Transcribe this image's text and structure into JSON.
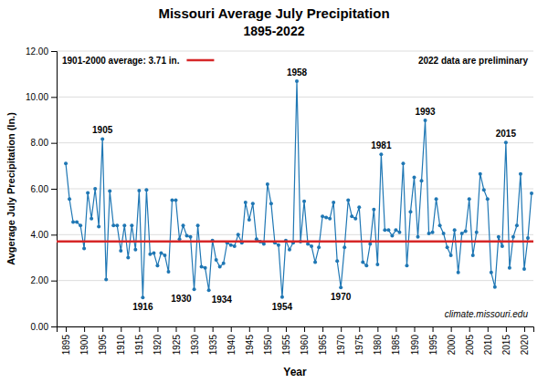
{
  "chart_data": {
    "type": "line",
    "title": "Missouri Average July Precipitation",
    "subtitle": "1895-2022",
    "x_label": "Year",
    "y_label": "Avgerage July Precipitation  (In.)",
    "marker": "circle",
    "grid": true,
    "x": [
      1895,
      1896,
      1897,
      1898,
      1899,
      1900,
      1901,
      1902,
      1903,
      1904,
      1905,
      1906,
      1907,
      1908,
      1909,
      1910,
      1911,
      1912,
      1913,
      1914,
      1915,
      1916,
      1917,
      1918,
      1919,
      1920,
      1921,
      1922,
      1923,
      1924,
      1925,
      1926,
      1927,
      1928,
      1929,
      1930,
      1931,
      1932,
      1933,
      1934,
      1935,
      1936,
      1937,
      1938,
      1939,
      1940,
      1941,
      1942,
      1943,
      1944,
      1945,
      1946,
      1947,
      1948,
      1949,
      1950,
      1951,
      1952,
      1953,
      1954,
      1955,
      1956,
      1957,
      1958,
      1959,
      1960,
      1961,
      1962,
      1963,
      1964,
      1965,
      1966,
      1967,
      1968,
      1969,
      1970,
      1971,
      1972,
      1973,
      1974,
      1975,
      1976,
      1977,
      1978,
      1979,
      1980,
      1981,
      1982,
      1983,
      1984,
      1985,
      1986,
      1987,
      1988,
      1989,
      1990,
      1991,
      1992,
      1993,
      1994,
      1995,
      1996,
      1997,
      1998,
      1999,
      2000,
      2001,
      2002,
      2003,
      2004,
      2005,
      2006,
      2007,
      2008,
      2009,
      2010,
      2011,
      2012,
      2013,
      2014,
      2015,
      2016,
      2017,
      2018,
      2019,
      2020,
      2021,
      2022
    ],
    "values": [
      7.1,
      5.55,
      4.55,
      4.55,
      4.4,
      3.4,
      5.82,
      4.7,
      6.0,
      4.35,
      8.17,
      2.05,
      5.9,
      4.4,
      4.4,
      3.3,
      4.4,
      3.0,
      4.4,
      3.35,
      5.92,
      1.26,
      5.95,
      3.15,
      3.2,
      2.65,
      3.2,
      3.1,
      2.38,
      5.5,
      5.5,
      3.8,
      4.4,
      3.95,
      3.9,
      1.62,
      4.4,
      2.6,
      2.55,
      1.58,
      3.75,
      2.9,
      2.6,
      2.75,
      3.65,
      3.55,
      3.5,
      4.0,
      3.65,
      5.4,
      4.65,
      5.35,
      3.8,
      3.7,
      3.6,
      6.2,
      5.35,
      3.65,
      3.55,
      1.28,
      3.75,
      3.35,
      3.65,
      10.69,
      3.7,
      5.45,
      3.6,
      3.5,
      2.8,
      3.45,
      4.8,
      4.75,
      4.7,
      5.4,
      2.85,
      1.7,
      3.45,
      5.5,
      4.8,
      4.7,
      5.2,
      2.8,
      2.65,
      3.6,
      5.1,
      2.7,
      7.5,
      4.2,
      4.2,
      3.95,
      4.2,
      4.1,
      7.1,
      2.65,
      5.0,
      6.5,
      3.9,
      6.35,
      8.98,
      4.05,
      4.1,
      5.55,
      4.4,
      4.05,
      3.45,
      3.1,
      4.2,
      2.35,
      4.05,
      4.15,
      5.55,
      3.1,
      4.1,
      6.65,
      5.95,
      5.55,
      2.35,
      1.72,
      3.9,
      3.5,
      8.02,
      2.55,
      3.9,
      4.4,
      6.65,
      2.5,
      3.85,
      5.8
    ],
    "xlim": [
      1892.5,
      2022.5
    ],
    "xticks": [
      1895,
      1900,
      1905,
      1910,
      1915,
      1920,
      1925,
      1930,
      1935,
      1940,
      1945,
      1950,
      1955,
      1960,
      1965,
      1970,
      1975,
      1980,
      1985,
      1990,
      1995,
      2000,
      2005,
      2010,
      2015,
      2020
    ],
    "ylim": [
      0.0,
      12.0
    ],
    "yticks": [
      {
        "value": 0.0,
        "label": "0.00"
      },
      {
        "value": 2.0,
        "label": "2.00"
      },
      {
        "value": 4.0,
        "label": "4.00"
      },
      {
        "value": 6.0,
        "label": "6.00"
      },
      {
        "value": 8.0,
        "label": "8.00"
      },
      {
        "value": 10.0,
        "label": "10.00"
      },
      {
        "value": 12.0,
        "label": "12.00"
      }
    ],
    "average": {
      "value": 3.71,
      "label": "1901-2000 average: 3.71 in."
    },
    "annotations": [
      {
        "text": "1905",
        "x": 1905,
        "y": 8.17
      },
      {
        "text": "1916",
        "x": 1916,
        "y": 1.26
      },
      {
        "text": "1930",
        "x": 1930,
        "y": 1.62
      },
      {
        "text": "1934",
        "x": 1934,
        "y": 1.58
      },
      {
        "text": "1954",
        "x": 1954,
        "y": 1.28
      },
      {
        "text": "1958",
        "x": 1958,
        "y": 10.69
      },
      {
        "text": "1970",
        "x": 1970,
        "y": 1.7
      },
      {
        "text": "1981",
        "x": 1981,
        "y": 7.5
      },
      {
        "text": "1993",
        "x": 1993,
        "y": 8.98
      },
      {
        "text": "2015",
        "x": 2015,
        "y": 8.02
      }
    ],
    "notes": [
      "2022 data are preliminary",
      "climate.missouri.edu"
    ]
  }
}
